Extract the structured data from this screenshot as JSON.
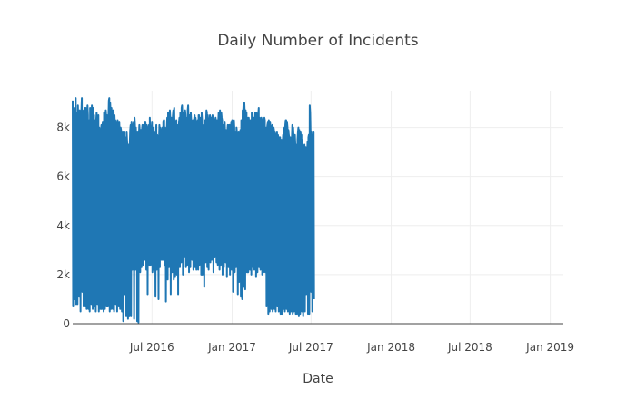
{
  "chart_data": {
    "type": "line",
    "title": "Daily Number of Incidents",
    "xlabel": "Date",
    "ylabel": "",
    "x_range": [
      "2016-01-01",
      "2019-01-31"
    ],
    "x_ticks": [
      {
        "date": "2016-07-01",
        "label": "Jul 2016"
      },
      {
        "date": "2017-01-01",
        "label": "Jan 2017"
      },
      {
        "date": "2017-07-01",
        "label": "Jul 2017"
      },
      {
        "date": "2018-01-01",
        "label": "Jan 2018"
      },
      {
        "date": "2018-07-01",
        "label": "Jul 2018"
      },
      {
        "date": "2019-01-01",
        "label": "Jan 2019"
      }
    ],
    "ylim": [
      0,
      9500
    ],
    "y_ticks": [
      {
        "value": 0,
        "label": "0"
      },
      {
        "value": 2000,
        "label": "2k"
      },
      {
        "value": 4000,
        "label": "4k"
      },
      {
        "value": 6000,
        "label": "6k"
      },
      {
        "value": 8000,
        "label": "8k"
      }
    ],
    "grid": true,
    "color": "#1f77b4",
    "series": [
      {
        "name": "",
        "x_start": "2016-01-01",
        "x_step_days": 1,
        "values": [
          9100,
          700,
          8800,
          7200,
          1000,
          8500,
          8300,
          9200,
          800,
          8600,
          8000,
          800,
          8900,
          8200,
          8500,
          1100,
          8700,
          8600,
          500,
          8200,
          8700,
          9200,
          1300,
          8700,
          8300,
          700,
          8400,
          8300,
          8800,
          700,
          8800,
          7900,
          600,
          8300,
          8900,
          8500,
          600,
          8300,
          8000,
          500,
          8800,
          8500,
          8400,
          800,
          8900,
          8200,
          600,
          8800,
          8200,
          8500,
          700,
          8300,
          8200,
          500,
          8300,
          8600,
          7800,
          800,
          7900,
          8500,
          500,
          8000,
          7700,
          7800,
          600,
          7900,
          8100,
          600,
          8000,
          8200,
          7900,
          500,
          8600,
          8100,
          600,
          8300,
          8700,
          8400,
          700,
          8500,
          8100,
          700,
          8300,
          9100,
          9200,
          500,
          9000,
          8600,
          600,
          8800,
          8200,
          8400,
          600,
          8700,
          8600,
          500,
          8500,
          8100,
          8300,
          800,
          8200,
          7700,
          500,
          8300,
          7600,
          8000,
          700,
          8200,
          7600,
          600,
          8000,
          7900,
          7500,
          500,
          7600,
          7800,
          100,
          7400,
          7300,
          7800,
          1200,
          7600,
          7400,
          300,
          7800,
          7400,
          7100,
          200,
          7300,
          7300,
          300,
          7300,
          7900,
          8100,
          300,
          8200,
          7800,
          2200,
          7800,
          8100,
          8200,
          200,
          8400,
          8100,
          2200,
          8000,
          7500,
          7800,
          100,
          7500,
          7800,
          50,
          7700,
          8100,
          7800,
          2100,
          7900,
          7900,
          2300,
          7900,
          8100,
          8000,
          2400,
          8100,
          8100,
          2600,
          8200,
          8200,
          7800,
          2200,
          8100,
          7600,
          1200,
          7800,
          8000,
          8100,
          2400,
          8400,
          7600,
          2400,
          7600,
          7900,
          8200,
          2100,
          8000,
          7400,
          2200,
          7800,
          7100,
          7600,
          1100,
          7800,
          8100,
          2200,
          7700,
          7600,
          7300,
          1000,
          7400,
          8100,
          2300,
          8000,
          7800,
          7900,
          2600,
          7900,
          8000,
          2600,
          8200,
          8300,
          8300,
          2400,
          8000,
          7600,
          900,
          7500,
          7900,
          8400,
          1800,
          8600,
          8000,
          2300,
          8400,
          8700,
          8400,
          1200,
          8400,
          8200,
          2100,
          8100,
          8500,
          8700,
          1800,
          8800,
          7800,
          1900,
          8000,
          8200,
          8300,
          2000,
          8100,
          7800,
          1200,
          7900,
          8200,
          8400,
          2300,
          8600,
          8400,
          2500,
          8800,
          8900,
          8400,
          2000,
          8600,
          8200,
          2700,
          8300,
          8700,
          8500,
          2300,
          8400,
          8300,
          2400,
          8700,
          8900,
          8200,
          2100,
          8500,
          8100,
          2300,
          8600,
          8300,
          8100,
          2600,
          8000,
          8300,
          2200,
          8100,
          8400,
          8500,
          2300,
          8400,
          8200,
          2200,
          8000,
          8100,
          8300,
          2200,
          8500,
          8500,
          2400,
          8400,
          8100,
          8400,
          2000,
          8600,
          8300,
          2000,
          7800,
          8000,
          8100,
          1500,
          8200,
          8300,
          2500,
          8200,
          8700,
          8600,
          2300,
          8500,
          8100,
          2200,
          8200,
          8300,
          8500,
          2500,
          8300,
          8400,
          2600,
          8400,
          8500,
          8100,
          2100,
          8300,
          8000,
          2700,
          8300,
          8400,
          8100,
          2500,
          8300,
          8100,
          2400,
          8200,
          8600,
          8400,
          2200,
          8700,
          8500,
          2400,
          8600,
          8400,
          8300,
          2000,
          7900,
          8100,
          2300,
          8000,
          8200,
          7700,
          2500,
          7900,
          7800,
          1900,
          7800,
          8100,
          8000,
          2300,
          8100,
          8100,
          2000,
          7800,
          8000,
          8200,
          2200,
          8300,
          7700,
          1300,
          8100,
          8300,
          8000,
          2100,
          7800,
          7700,
          2300,
          8000,
          7800,
          7500,
          1200,
          7400,
          7800,
          1700,
          7600,
          7400,
          7900,
          1100,
          8300,
          8200,
          1000,
          8700,
          8500,
          8900,
          1500,
          9000,
          8600,
          1400,
          8700,
          8200,
          8600,
          2100,
          8400,
          8200,
          2100,
          8400,
          8200,
          8100,
          2200,
          8300,
          8000,
          2000,
          8600,
          8500,
          8200,
          2300,
          8300,
          8400,
          2200,
          8200,
          8600,
          8500,
          1900,
          8600,
          8400,
          2100,
          8200,
          8500,
          8800,
          2300,
          8400,
          8300,
          2200,
          8200,
          8400,
          8300,
          2000,
          8100,
          8000,
          2100,
          8200,
          8400,
          8300,
          2100,
          8000,
          7800,
          700,
          7900,
          8100,
          8200,
          400,
          8300,
          8100,
          500,
          8200,
          8000,
          7900,
          600,
          8000,
          8100,
          500,
          7900,
          8000,
          7900,
          600,
          7800,
          7600,
          500,
          7600,
          7700,
          7800,
          700,
          7700,
          7600,
          500,
          7500,
          7600,
          7600,
          400,
          7400,
          7500,
          400,
          7200,
          7400,
          7700,
          600,
          7800,
          8000,
          500,
          8100,
          8300,
          8300,
          600,
          8200,
          8000,
          500,
          7900,
          7700,
          7600,
          400,
          7600,
          7500,
          500,
          7600,
          7500,
          8100,
          400,
          8000,
          7600,
          500,
          7300,
          7700,
          7300,
          400,
          7200,
          7300,
          400,
          7500,
          7800,
          8000,
          300,
          7900,
          7600,
          400,
          7800,
          7500,
          7700,
          500,
          7500,
          7200,
          300,
          7000,
          7200,
          7300,
          500,
          7100,
          7200,
          1200,
          7000,
          6800,
          7400,
          400,
          7600,
          7700,
          400,
          8900,
          8600,
          7700,
          1300,
          7800,
          7500,
          500,
          7700,
          7600,
          7800,
          1000
        ]
      }
    ]
  }
}
